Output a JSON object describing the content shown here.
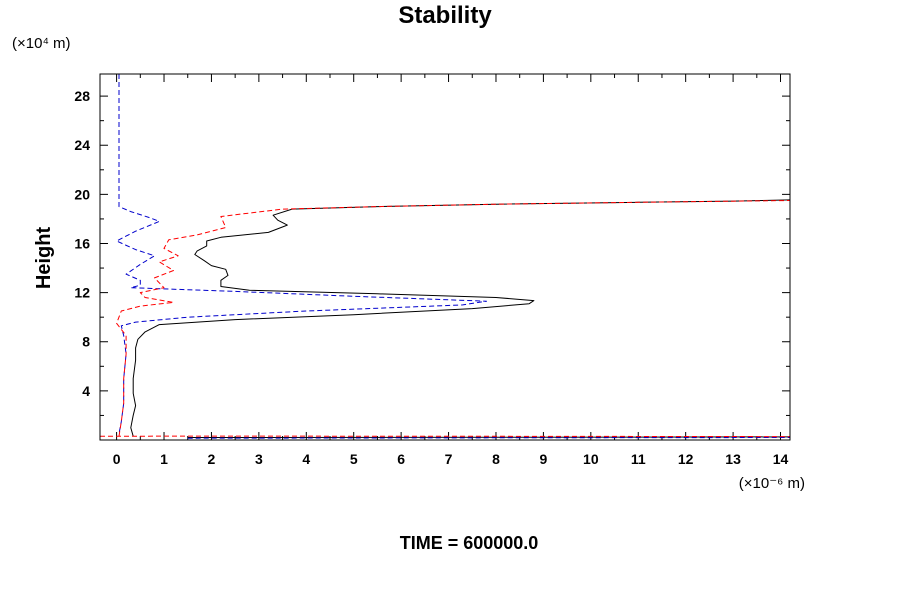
{
  "chart_data": {
    "type": "line",
    "title": "Stability",
    "ylabel": "Height",
    "xlabel": "",
    "x_unit": "(×10⁻⁶ m)",
    "y_unit": "(×10⁴ m)",
    "footer": "TIME = 600000.0",
    "xlim": [
      -0.35,
      14.2
    ],
    "ylim": [
      0,
      29.8
    ],
    "xticks": [
      0,
      1,
      2,
      3,
      4,
      5,
      6,
      7,
      8,
      9,
      10,
      11,
      12,
      13,
      14
    ],
    "xtick_labels": [
      "0",
      "1",
      "2",
      "3",
      "4",
      "5",
      "6",
      "7",
      "8",
      "9",
      "10",
      "11",
      "12",
      "13",
      "14"
    ],
    "yticks": [
      4,
      8,
      12,
      16,
      20,
      24,
      28
    ],
    "ytick_labels": [
      "4",
      "8",
      "12",
      "16",
      "20",
      "24",
      "28"
    ],
    "grid": false,
    "legend": "none",
    "series": [
      {
        "color": "#000000",
        "style": "solid",
        "points": [
          [
            0.35,
            0.3
          ],
          [
            0.3,
            1.0
          ],
          [
            0.35,
            2.0
          ],
          [
            0.4,
            2.8
          ],
          [
            0.35,
            3.8
          ],
          [
            0.35,
            5.0
          ],
          [
            0.4,
            6.5
          ],
          [
            0.4,
            7.5
          ],
          [
            0.45,
            8.2
          ],
          [
            0.6,
            8.8
          ],
          [
            0.9,
            9.4
          ],
          [
            2.5,
            9.8
          ],
          [
            5.0,
            10.2
          ],
          [
            7.5,
            10.7
          ],
          [
            8.7,
            11.1
          ],
          [
            8.8,
            11.35
          ],
          [
            8.0,
            11.6
          ],
          [
            5.5,
            11.9
          ],
          [
            2.8,
            12.2
          ],
          [
            2.2,
            12.5
          ],
          [
            2.2,
            13.0
          ],
          [
            2.35,
            13.4
          ],
          [
            2.3,
            13.9
          ],
          [
            2.0,
            14.2
          ],
          [
            1.85,
            14.6
          ],
          [
            1.65,
            15.1
          ],
          [
            1.7,
            15.4
          ],
          [
            1.9,
            15.8
          ],
          [
            1.9,
            16.2
          ],
          [
            2.2,
            16.5
          ],
          [
            3.2,
            16.9
          ],
          [
            3.6,
            17.5
          ],
          [
            3.4,
            17.9
          ],
          [
            3.3,
            18.3
          ],
          [
            3.7,
            18.8
          ],
          [
            5.5,
            19.0
          ],
          [
            8.0,
            19.2
          ],
          [
            11.0,
            19.35
          ],
          [
            13.0,
            19.45
          ],
          [
            14.2,
            19.55
          ]
        ]
      },
      {
        "color": "#0000cc",
        "style": "dashed",
        "points": [
          [
            0.05,
            29.8
          ],
          [
            0.05,
            26.0
          ],
          [
            0.05,
            22.0
          ],
          [
            0.05,
            19.0
          ],
          [
            0.3,
            18.6
          ],
          [
            0.7,
            18.1
          ],
          [
            0.9,
            17.8
          ],
          [
            0.4,
            17.0
          ],
          [
            0.0,
            16.2
          ],
          [
            0.4,
            15.5
          ],
          [
            0.8,
            15.0
          ],
          [
            0.5,
            14.3
          ],
          [
            0.2,
            13.5
          ],
          [
            0.5,
            13.0
          ],
          [
            0.5,
            12.6
          ],
          [
            0.3,
            12.4
          ],
          [
            2.5,
            12.1
          ],
          [
            5.0,
            11.7
          ],
          [
            7.8,
            11.3
          ],
          [
            7.3,
            11.0
          ],
          [
            4.0,
            10.5
          ],
          [
            1.5,
            10.0
          ],
          [
            0.4,
            9.6
          ],
          [
            0.1,
            9.3
          ],
          [
            0.15,
            8.5
          ],
          [
            0.2,
            7.0
          ],
          [
            0.15,
            5.0
          ],
          [
            0.15,
            3.0
          ],
          [
            0.1,
            1.5
          ],
          [
            0.05,
            0.5
          ]
        ]
      },
      {
        "color": "#ff0000",
        "style": "dashed",
        "points": [
          [
            0.05,
            0.3
          ],
          [
            0.1,
            1.5
          ],
          [
            0.15,
            3.0
          ],
          [
            0.15,
            5.0
          ],
          [
            0.2,
            7.0
          ],
          [
            0.2,
            8.5
          ],
          [
            0.0,
            9.5
          ],
          [
            0.1,
            10.5
          ],
          [
            0.5,
            10.9
          ],
          [
            1.2,
            11.2
          ],
          [
            0.6,
            11.6
          ],
          [
            0.5,
            12.0
          ],
          [
            1.0,
            12.4
          ],
          [
            0.8,
            13.2
          ],
          [
            1.2,
            13.8
          ],
          [
            0.9,
            14.5
          ],
          [
            1.3,
            15.0
          ],
          [
            1.0,
            15.6
          ],
          [
            1.1,
            16.3
          ],
          [
            1.7,
            16.7
          ],
          [
            2.3,
            17.3
          ],
          [
            2.2,
            18.2
          ],
          [
            3.5,
            18.8
          ],
          [
            5.5,
            19.0
          ],
          [
            8.0,
            19.2
          ],
          [
            11.0,
            19.35
          ],
          [
            14.2,
            19.5
          ]
        ]
      },
      {
        "color": "#000000",
        "style": "solid",
        "points": [
          [
            1.5,
            0.2
          ],
          [
            8.0,
            0.22
          ],
          [
            14.2,
            0.25
          ]
        ]
      },
      {
        "color": "#0000cc",
        "style": "dashed",
        "points": [
          [
            1.5,
            0.15
          ],
          [
            8.0,
            0.18
          ],
          [
            14.2,
            0.2
          ]
        ]
      },
      {
        "color": "#ff0000",
        "style": "dashed",
        "points": [
          [
            -0.35,
            0.3
          ],
          [
            1.5,
            0.32
          ],
          [
            8.0,
            0.3
          ],
          [
            14.2,
            0.28
          ]
        ]
      }
    ]
  }
}
